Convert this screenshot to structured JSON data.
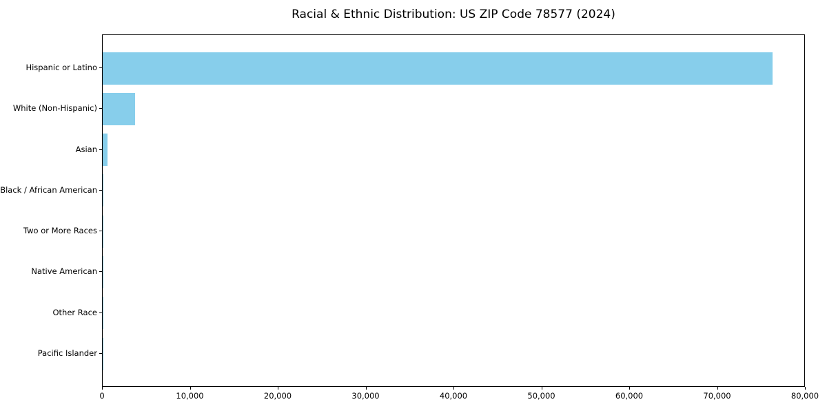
{
  "chart_data": {
    "type": "bar",
    "orientation": "horizontal",
    "title": "Racial & Ethnic Distribution: US ZIP Code 78577 (2024)",
    "xlabel": "",
    "ylabel": "",
    "categories": [
      "Hispanic or Latino",
      "White (Non-Hispanic)",
      "Asian",
      "Black / African American",
      "Two or More Races",
      "Native American",
      "Other Race",
      "Pacific Islander"
    ],
    "values": [
      76200,
      3690,
      550,
      100,
      55,
      40,
      25,
      10
    ],
    "xlim": [
      0,
      80000
    ],
    "x_ticks": [
      0,
      10000,
      20000,
      30000,
      40000,
      50000,
      60000,
      70000,
      80000
    ],
    "x_tick_labels": [
      "0",
      "10,000",
      "20,000",
      "30,000",
      "40,000",
      "50,000",
      "60,000",
      "70,000",
      "80,000"
    ],
    "bar_color": "#87CEEB",
    "spine_color": "#000000",
    "background_color": "#ffffff",
    "grid": false,
    "legend": null
  }
}
